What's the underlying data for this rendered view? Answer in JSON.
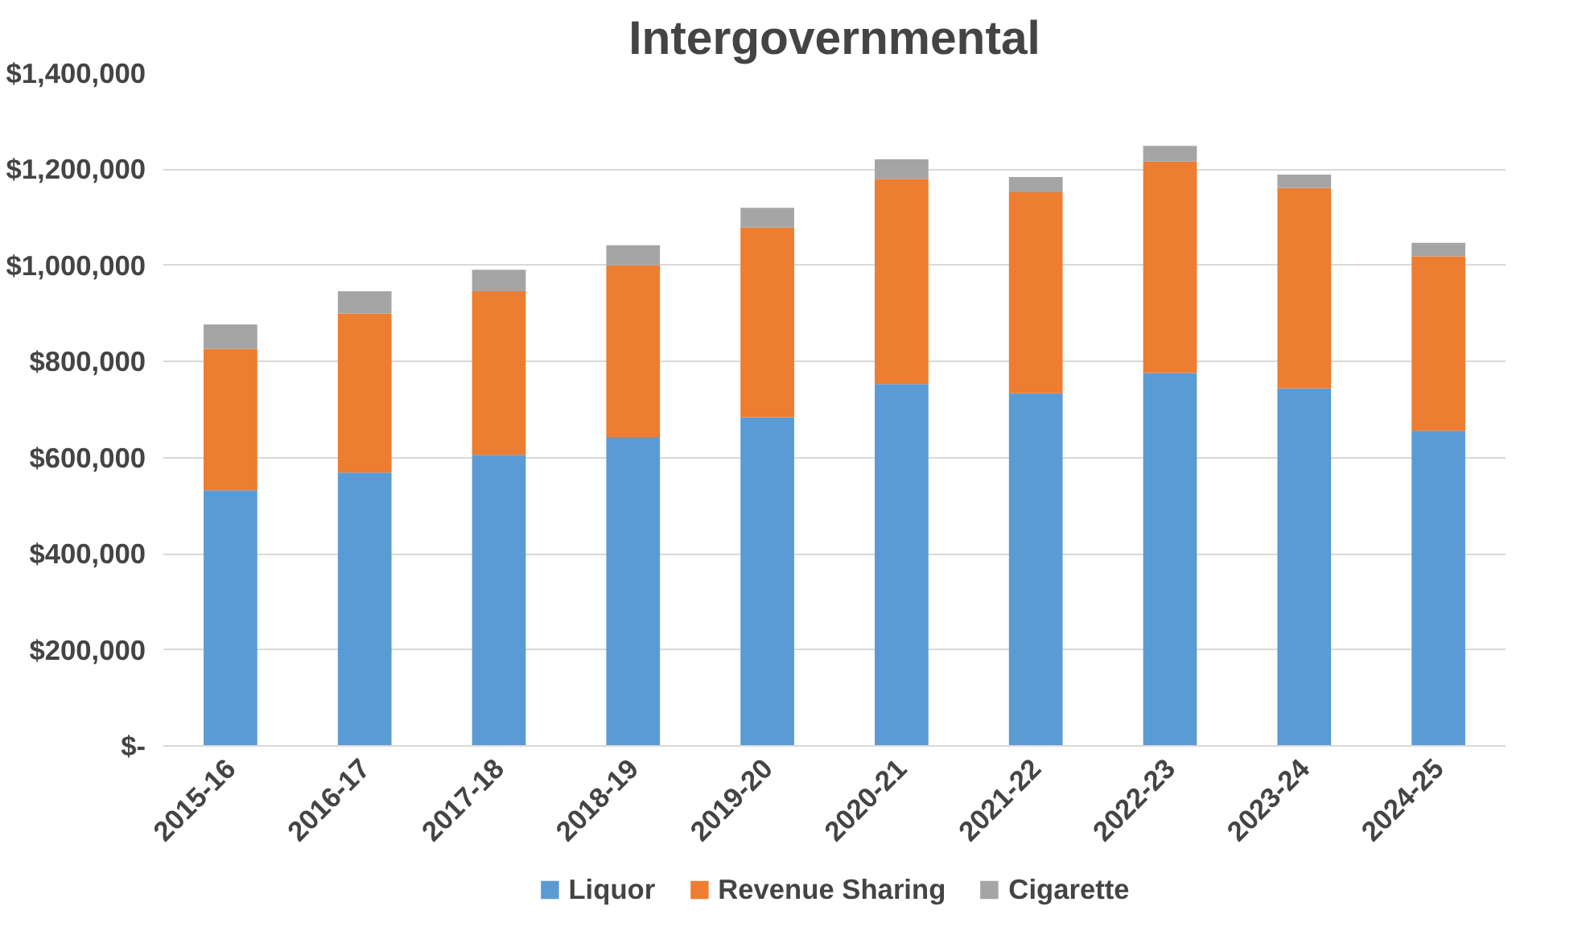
{
  "chart_data": {
    "type": "bar",
    "title": "Intergovernmental",
    "stacked": true,
    "categories": [
      "2015-16",
      "2016-17",
      "2017-18",
      "2018-19",
      "2019-20",
      "2020-21",
      "2021-22",
      "2022-23",
      "2023-24",
      "2024-25"
    ],
    "series": [
      {
        "name": "Liquor",
        "color": "#5b9bd5",
        "values": [
          532000,
          569000,
          606000,
          643000,
          684000,
          753000,
          734000,
          776000,
          744000,
          656000
        ]
      },
      {
        "name": "Revenue Sharing",
        "color": "#ed7d31",
        "values": [
          294000,
          331000,
          340000,
          357000,
          395000,
          427000,
          418000,
          440000,
          417000,
          363000
        ]
      },
      {
        "name": "Cigarette",
        "color": "#a5a5a5",
        "values": [
          51000,
          46000,
          45000,
          42000,
          41000,
          41000,
          32000,
          33000,
          28000,
          28000
        ]
      }
    ],
    "ylim": [
      0,
      1400000
    ],
    "yticks": [
      {
        "value": 0,
        "label": "$-"
      },
      {
        "value": 200000,
        "label": "$200,000"
      },
      {
        "value": 400000,
        "label": "$400,000"
      },
      {
        "value": 600000,
        "label": "$600,000"
      },
      {
        "value": 800000,
        "label": "$800,000"
      },
      {
        "value": 1000000,
        "label": "$1,000,000"
      },
      {
        "value": 1200000,
        "label": "$1,200,000"
      },
      {
        "value": 1400000,
        "label": "$1,400,000"
      }
    ],
    "grid": "y",
    "legend": "bottom"
  }
}
